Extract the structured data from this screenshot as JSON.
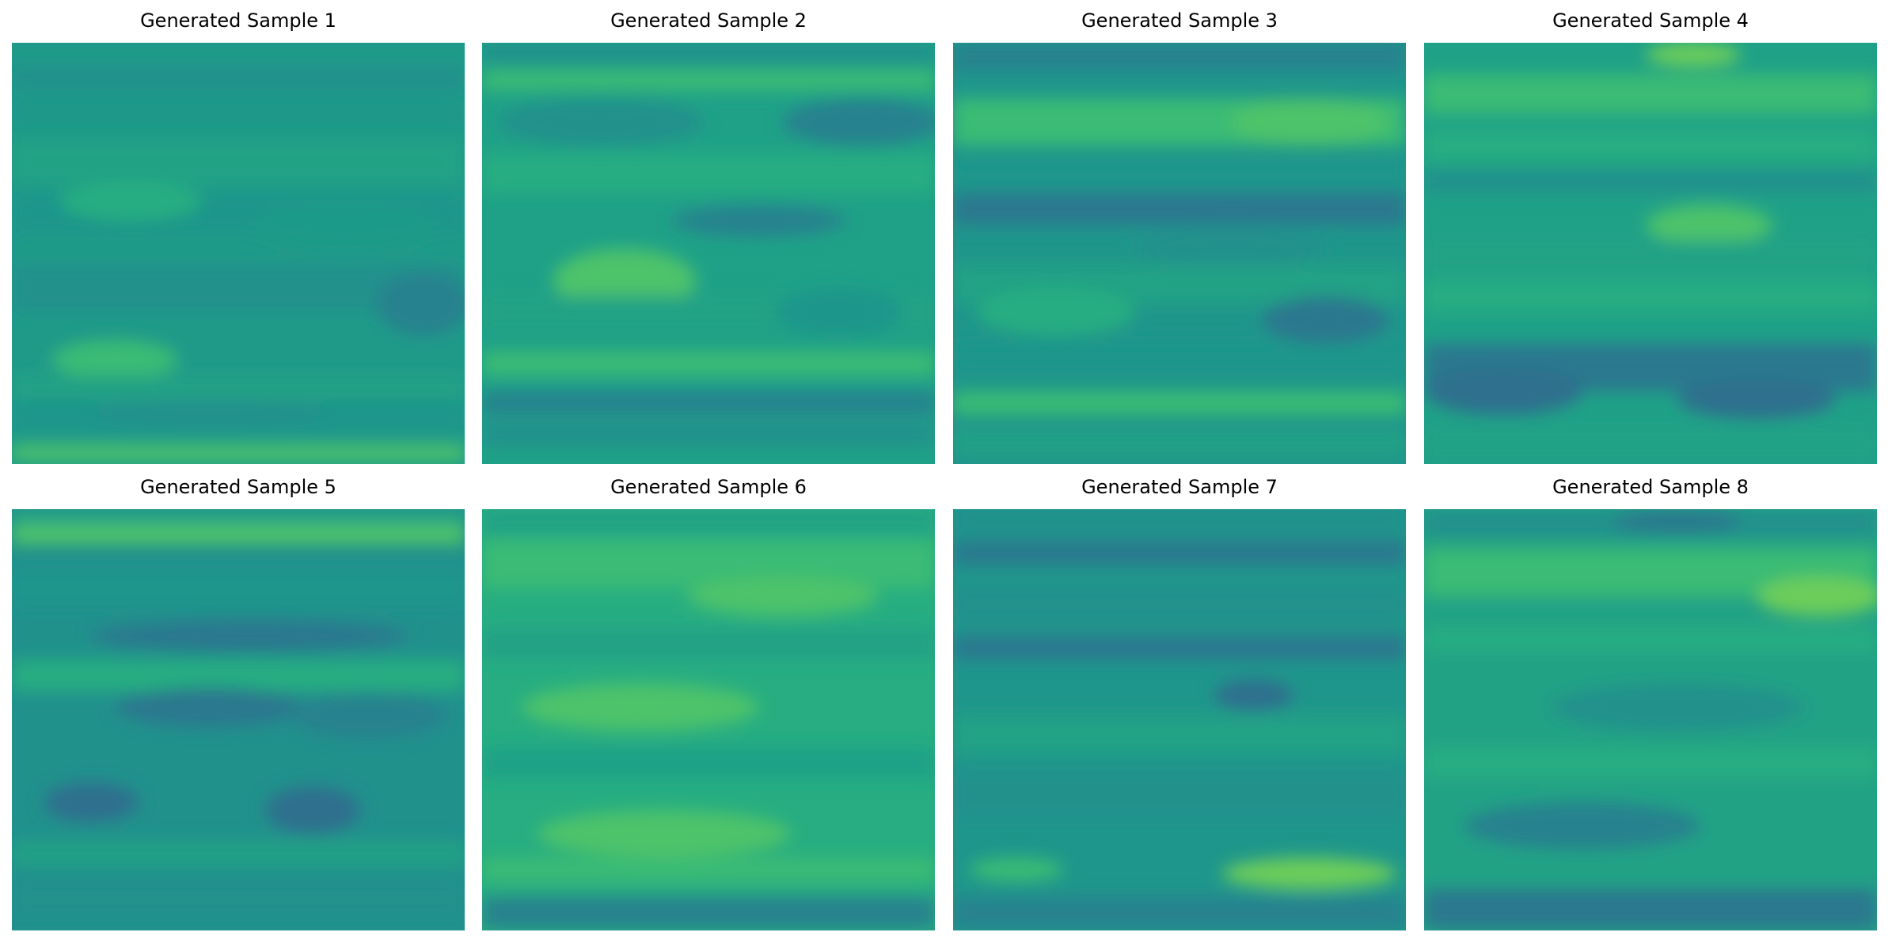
{
  "figure": {
    "panels": [
      {
        "title": "Generated Sample 1"
      },
      {
        "title": "Generated Sample 2"
      },
      {
        "title": "Generated Sample 3"
      },
      {
        "title": "Generated Sample 4"
      },
      {
        "title": "Generated Sample 5"
      },
      {
        "title": "Generated Sample 6"
      },
      {
        "title": "Generated Sample 7"
      },
      {
        "title": "Generated Sample 8"
      }
    ],
    "colormap": [
      "#2e6f8e",
      "#2a788e",
      "#21918c",
      "#1fa187",
      "#27ad81",
      "#3bbb75",
      "#4ec36b",
      "#6ccd5a"
    ]
  }
}
